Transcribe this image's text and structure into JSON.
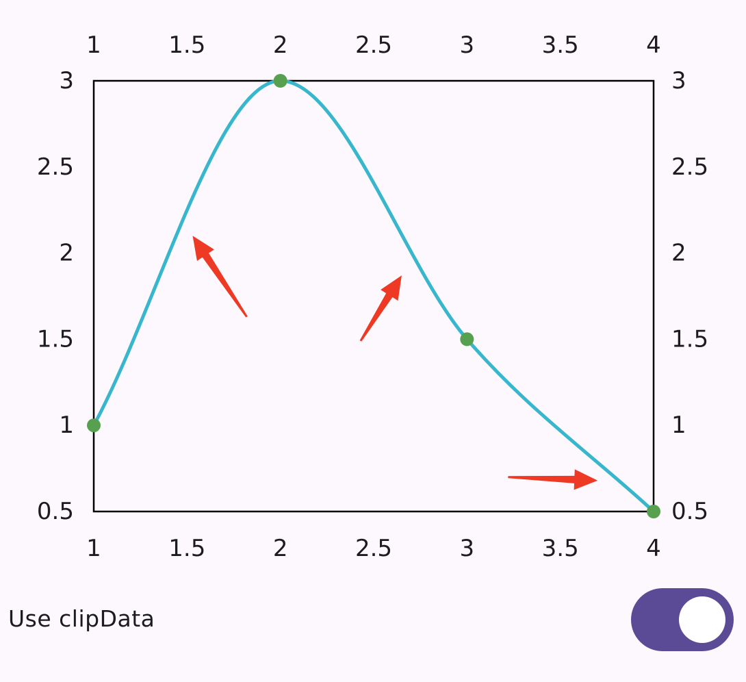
{
  "chart_data": {
    "type": "line",
    "smooth": true,
    "points": [
      {
        "x": 1,
        "y": 1
      },
      {
        "x": 2,
        "y": 3
      },
      {
        "x": 3,
        "y": 1.5
      },
      {
        "x": 4,
        "y": 0.5
      }
    ],
    "xlim": [
      1,
      4
    ],
    "ylim": [
      0.5,
      3
    ],
    "x_ticks": [
      "1",
      "1.5",
      "2",
      "2.5",
      "3",
      "3.5",
      "4"
    ],
    "y_ticks": [
      "0.5",
      "1",
      "1.5",
      "2",
      "2.5",
      "3"
    ],
    "x_tick_values": [
      1,
      1.5,
      2,
      2.5,
      3,
      3.5,
      4
    ],
    "y_tick_values": [
      0.5,
      1,
      1.5,
      2,
      2.5,
      3
    ],
    "axes": [
      "top",
      "bottom",
      "left",
      "right"
    ],
    "grid": false,
    "line_color": "#38b6cc",
    "point_color": "#57a04f",
    "annotation_color": "#ee3a24",
    "annotations": [
      {
        "type": "arrow",
        "from": [
          1.82,
          1.63
        ],
        "to": [
          1.53,
          2.1
        ]
      },
      {
        "type": "arrow",
        "from": [
          2.43,
          1.49
        ],
        "to": [
          2.65,
          1.87
        ]
      },
      {
        "type": "arrow",
        "from": [
          3.22,
          0.7
        ],
        "to": [
          3.7,
          0.68
        ]
      }
    ]
  },
  "settings": {
    "clip_label": "Use clipData",
    "clip_enabled": true,
    "switch_color": "#5b4b96"
  }
}
